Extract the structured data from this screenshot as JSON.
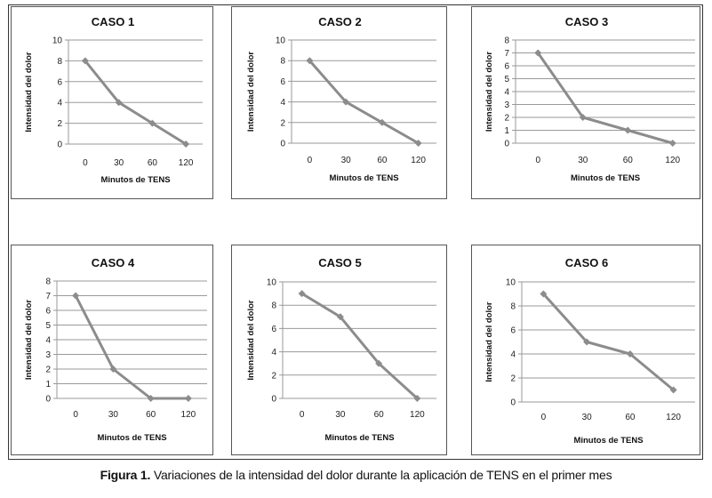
{
  "chart_data": [
    {
      "type": "line",
      "title": "CASO 1",
      "categories": [
        "0",
        "30",
        "60",
        "120"
      ],
      "values": [
        8,
        4,
        2,
        0
      ],
      "xlabel": "Minutos de TENS",
      "ylabel": "Intensidad del dolor",
      "ylim": [
        0,
        10
      ],
      "yticks": [
        0,
        2,
        4,
        6,
        8,
        10
      ],
      "color": "#8c8c8c"
    },
    {
      "type": "line",
      "title": "CASO 2",
      "categories": [
        "0",
        "30",
        "60",
        "120"
      ],
      "values": [
        8,
        4,
        2,
        0
      ],
      "xlabel": "Minutos de TENS",
      "ylabel": "Intensidad del dolor",
      "ylim": [
        0,
        10
      ],
      "yticks": [
        0,
        2,
        4,
        6,
        8,
        10
      ],
      "color": "#8c8c8c"
    },
    {
      "type": "line",
      "title": "CASO 3",
      "categories": [
        "0",
        "30",
        "60",
        "120"
      ],
      "values": [
        7,
        2,
        1,
        0
      ],
      "xlabel": "Minutos de TENS",
      "ylabel": "Intensidad del dolor",
      "ylim": [
        0,
        8
      ],
      "yticks": [
        0,
        1,
        2,
        3,
        4,
        5,
        6,
        7,
        8
      ],
      "color": "#8c8c8c"
    },
    {
      "type": "line",
      "title": "CASO 4",
      "categories": [
        "0",
        "30",
        "60",
        "120"
      ],
      "values": [
        7,
        2,
        0,
        0
      ],
      "xlabel": "Minutos de TENS",
      "ylabel": "Intensidad del dolor",
      "ylim": [
        0,
        8
      ],
      "yticks": [
        0,
        1,
        2,
        3,
        4,
        5,
        6,
        7,
        8
      ],
      "color": "#8c8c8c"
    },
    {
      "type": "line",
      "title": "CASO 5",
      "categories": [
        "0",
        "30",
        "60",
        "120"
      ],
      "values": [
        9,
        7,
        3,
        0
      ],
      "xlabel": "Minutos de TENS",
      "ylabel": "Intensidad del dolor",
      "ylim": [
        0,
        10
      ],
      "yticks": [
        0,
        2,
        4,
        6,
        8,
        10
      ],
      "color": "#8c8c8c"
    },
    {
      "type": "line",
      "title": "CASO 6",
      "categories": [
        "0",
        "30",
        "60",
        "120"
      ],
      "values": [
        9,
        5,
        4,
        1
      ],
      "xlabel": "Minutos de TENS",
      "ylabel": "Intensidad del dolor",
      "ylim": [
        0,
        10
      ],
      "yticks": [
        0,
        2,
        4,
        6,
        8,
        10
      ],
      "color": "#8c8c8c"
    }
  ],
  "caption": {
    "label": "Figura 1.",
    "text": "Variaciones de la intensidad del dolor durante la aplicación de TENS en el primer mes"
  }
}
